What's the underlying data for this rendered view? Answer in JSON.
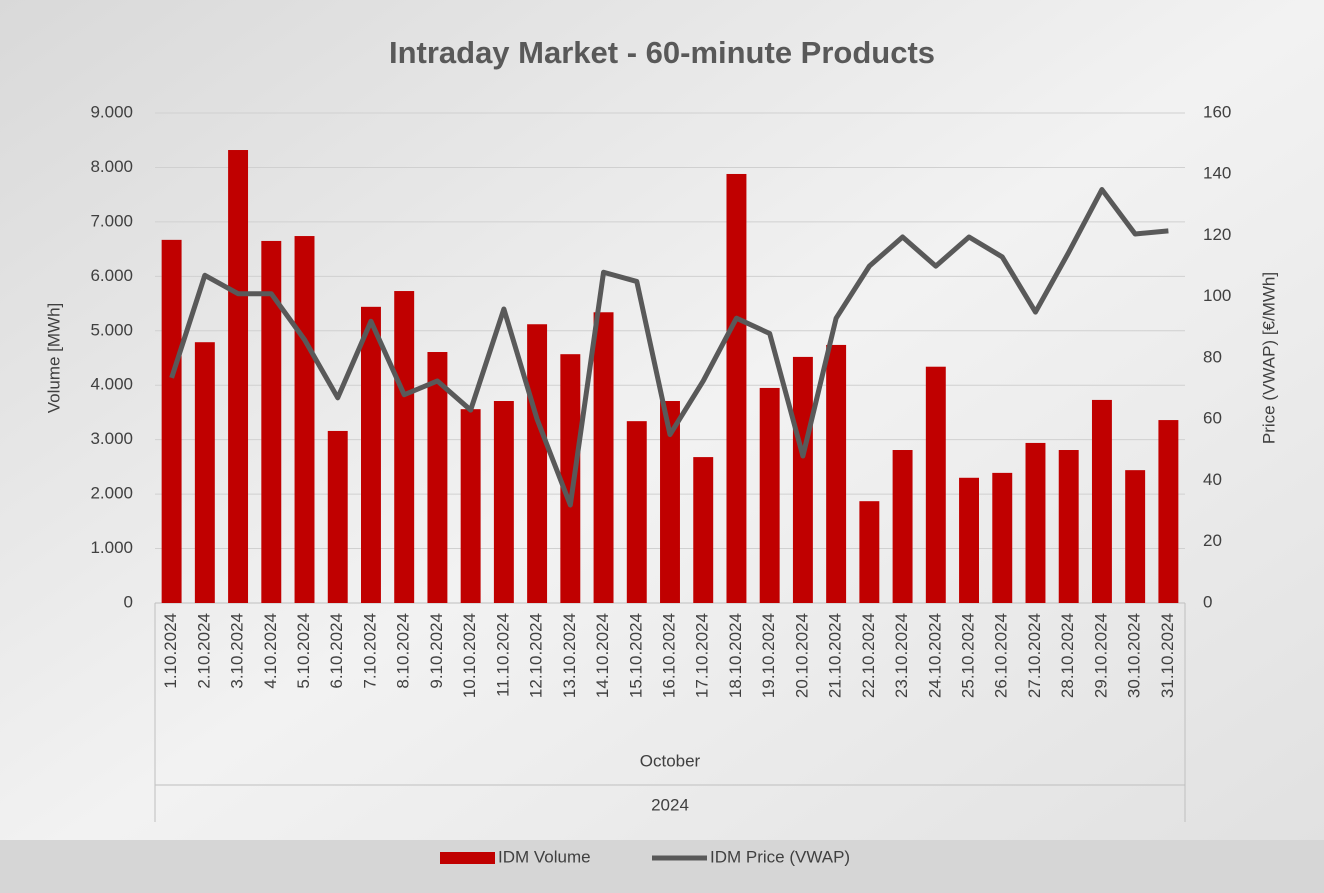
{
  "chart_data": {
    "type": "bar-line",
    "title": "Intraday Market - 60-minute Products",
    "categories": [
      "1.10.2024",
      "2.10.2024",
      "3.10.2024",
      "4.10.2024",
      "5.10.2024",
      "6.10.2024",
      "7.10.2024",
      "8.10.2024",
      "9.10.2024",
      "10.10.2024",
      "11.10.2024",
      "12.10.2024",
      "13.10.2024",
      "14.10.2024",
      "15.10.2024",
      "16.10.2024",
      "17.10.2024",
      "18.10.2024",
      "19.10.2024",
      "20.10.2024",
      "21.10.2024",
      "22.10.2024",
      "23.10.2024",
      "24.10.2024",
      "25.10.2024",
      "26.10.2024",
      "27.10.2024",
      "28.10.2024",
      "29.10.2024",
      "30.10.2024",
      "31.10.2024"
    ],
    "category_groups": [
      "October",
      "2024"
    ],
    "y_label": "Volume [MWh]",
    "y2_label": "Price (VWAP) [€/MWh]",
    "series": [
      {
        "name": "IDM Volume",
        "type": "bar",
        "color": "#c00000",
        "values": [
          6670,
          4790,
          8320,
          6650,
          6740,
          3160,
          5440,
          5730,
          4610,
          3560,
          3710,
          5120,
          4570,
          5340,
          3340,
          3710,
          2680,
          7880,
          3950,
          4520,
          4740,
          1870,
          2810,
          4340,
          2300,
          2390,
          2940,
          2810,
          3730,
          2440,
          3360
        ]
      },
      {
        "name": "IDM Price (VWAP)",
        "type": "line",
        "axis": "y2",
        "color": "#595959",
        "values": [
          73.5,
          107,
          101,
          101,
          86,
          67,
          92,
          68,
          72.5,
          63,
          96,
          60,
          32,
          108,
          105,
          55,
          72.5,
          93,
          88,
          48,
          93,
          110,
          119.5,
          110,
          119.5,
          113,
          95,
          114.5,
          135,
          120.5,
          121.5
        ]
      }
    ],
    "ylim": [
      0,
      9000
    ],
    "yticks": [
      0,
      {
        "value": 1000,
        "label": "1.000"
      },
      {
        "value": 2000,
        "label": "2.000"
      },
      {
        "value": 3000,
        "label": "3.000"
      },
      {
        "value": 4000,
        "label": "4.000"
      },
      {
        "value": 5000,
        "label": "5.000"
      },
      {
        "value": 6000,
        "label": "6.000"
      },
      {
        "value": 7000,
        "label": "7.000"
      },
      {
        "value": 8000,
        "label": "8.000"
      },
      {
        "value": 9000,
        "label": "9.000"
      }
    ],
    "y2lim": [
      0,
      160
    ],
    "y2ticks": [
      0,
      20,
      40,
      60,
      80,
      100,
      120,
      140,
      160
    ],
    "grid": true
  }
}
